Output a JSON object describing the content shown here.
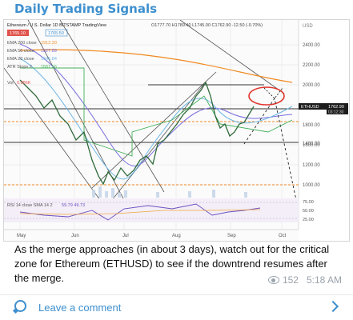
{
  "channel": {
    "title": "Daily Trading Signals"
  },
  "chart": {
    "header": "Ethereum / U.S. Dollar  1D  BITSTAMP  TradingView",
    "ohlc": "O1777.70  H1789.40  L1745.00  C1762.90  -12.50 (-0.70%)",
    "bid": "1765.10",
    "ask": "1765.50",
    "currency": "USD",
    "indicators": [
      {
        "label": "EMA 200 close",
        "value": "1912.20",
        "color": "#f08a22"
      },
      {
        "label": "EMA 50 close",
        "value": "1827.89",
        "color": "#7a6ee0"
      },
      {
        "label": "EMA 20 close",
        "value": "1645.84",
        "color": "#6fb7e6"
      },
      {
        "label": "ATR Stops 2",
        "value": "1561.56",
        "color": "#44b05b"
      },
      {
        "label": "Vol",
        "value": "0.986K",
        "color": "#e0534c"
      }
    ],
    "price_labels": [
      "2400.00",
      "2200.00",
      "2000.00",
      "1800.00",
      "1600.00",
      "1400.00",
      "1200.00",
      "1000.00"
    ],
    "tag_symbol": "ETHUSD",
    "tag_price": "1762.90",
    "tag_time": "03:12:30",
    "rsi_label": "RSI 14 close SMA 14 2",
    "rsi_values": "59.79  49.73",
    "rsi_levels": [
      "75.00",
      "50.00",
      "25.00"
    ],
    "months": [
      "May",
      "Jun",
      "Jul",
      "Aug",
      "Sep",
      "Oct"
    ]
  },
  "message": {
    "text": "As the merge approaches (in about 3 days), watch out for the critical zone for Ethereum (ETHUSD) to see if the downtrend resumes after the merge.",
    "views": "152",
    "time": "5:18 AM"
  },
  "footer": {
    "comment_label": "Leave a comment"
  },
  "colors": {
    "accent": "#3d8fce",
    "ema200": "#f08a22",
    "ema50": "#7a6ee0",
    "ema20": "#6fb7e6",
    "atr": "#44b05b",
    "highlight": "#e0342c"
  }
}
